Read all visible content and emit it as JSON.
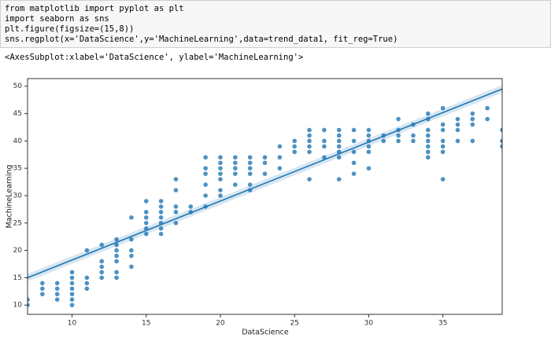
{
  "code": [
    "from matplotlib import pyplot as plt",
    "import seaborn as sns",
    "plt.figure(figsize=(15,8))",
    "sns.regplot(x='DataScience',y='MachineLearning',data=trend_data1, fit_reg=True)"
  ],
  "output": "<AxesSubplot:xlabel='DataScience', ylabel='MachineLearning'>",
  "chart_data": {
    "type": "scatter",
    "xlabel": "DataScience",
    "ylabel": "MachineLearning",
    "xlim": [
      7,
      39
    ],
    "ylim": [
      8.3,
      51.4
    ],
    "xticks": [
      10,
      15,
      20,
      25,
      30,
      35
    ],
    "yticks": [
      10,
      15,
      20,
      25,
      30,
      35,
      40,
      45,
      50
    ],
    "color": "#1f77b4",
    "x": [
      7,
      7,
      8,
      8,
      8,
      9,
      9,
      9,
      9,
      10,
      10,
      10,
      10,
      10,
      10,
      10,
      11,
      11,
      11,
      11,
      12,
      12,
      12,
      12,
      12,
      13,
      13,
      13,
      13,
      13,
      13,
      13,
      14,
      14,
      14,
      14,
      14,
      15,
      15,
      15,
      15,
      15,
      15,
      16,
      16,
      16,
      16,
      16,
      16,
      16,
      17,
      17,
      17,
      17,
      17,
      18,
      18,
      19,
      19,
      19,
      19,
      19,
      19,
      20,
      20,
      20,
      20,
      20,
      20,
      20,
      21,
      21,
      21,
      21,
      21,
      22,
      22,
      22,
      22,
      22,
      22,
      23,
      23,
      23,
      24,
      24,
      24,
      25,
      25,
      25,
      26,
      26,
      26,
      26,
      26,
      26,
      27,
      27,
      27,
      27,
      28,
      28,
      28,
      28,
      28,
      28,
      28,
      29,
      29,
      29,
      29,
      29,
      30,
      30,
      30,
      30,
      30,
      30,
      31,
      31,
      32,
      32,
      32,
      32,
      33,
      33,
      33,
      34,
      34,
      34,
      34,
      34,
      34,
      34,
      34,
      35,
      35,
      35,
      35,
      35,
      35,
      35,
      36,
      36,
      36,
      36,
      37,
      37,
      37,
      37,
      38,
      38,
      39,
      39,
      39
    ],
    "values": [
      10,
      11,
      12,
      13,
      14,
      11,
      12,
      13,
      14,
      10,
      11,
      12,
      13,
      14,
      15,
      16,
      13,
      14,
      15,
      20,
      15,
      16,
      17,
      18,
      21,
      15,
      16,
      18,
      19,
      20,
      21,
      22,
      17,
      19,
      20,
      22,
      26,
      23,
      24,
      25,
      26,
      27,
      29,
      23,
      24,
      25,
      26,
      27,
      28,
      29,
      25,
      27,
      28,
      31,
      33,
      27,
      28,
      28,
      30,
      32,
      34,
      35,
      37,
      30,
      31,
      33,
      34,
      35,
      36,
      37,
      32,
      34,
      35,
      36,
      37,
      31,
      32,
      34,
      35,
      36,
      37,
      34,
      36,
      37,
      35,
      37,
      39,
      38,
      39,
      40,
      33,
      38,
      39,
      40,
      41,
      42,
      37,
      39,
      40,
      42,
      33,
      37,
      38,
      39,
      40,
      41,
      42,
      34,
      36,
      38,
      40,
      42,
      35,
      38,
      39,
      40,
      41,
      42,
      40,
      41,
      40,
      41,
      42,
      44,
      40,
      41,
      43,
      37,
      38,
      39,
      40,
      41,
      42,
      44,
      45,
      33,
      38,
      39,
      40,
      42,
      43,
      46,
      40,
      42,
      43,
      44,
      40,
      43,
      44,
      45,
      44,
      46,
      39,
      40,
      42
    ],
    "fit": {
      "x": [
        7,
        39
      ],
      "values": [
        15,
        49.5
      ]
    }
  }
}
